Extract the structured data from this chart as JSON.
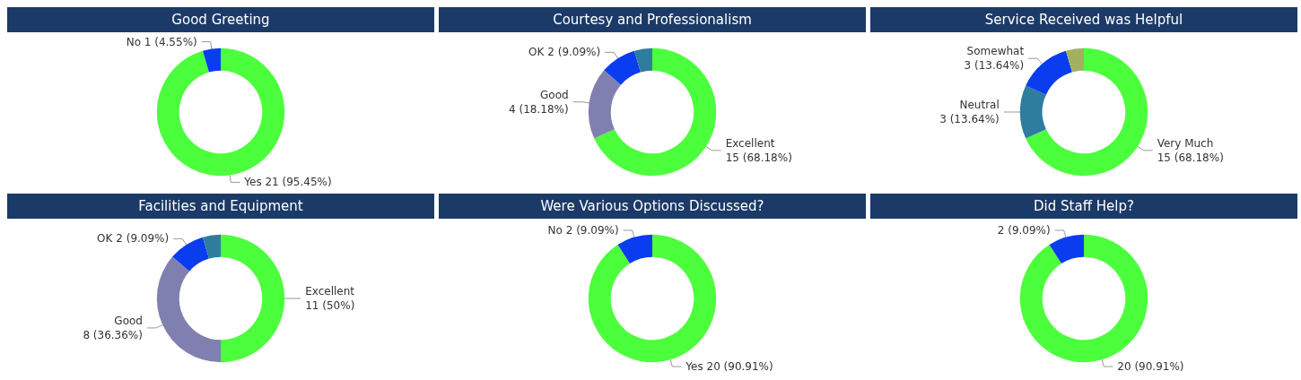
{
  "chart_data": [
    {
      "type": "donut",
      "title": "Good Greeting",
      "categories": [
        "Yes",
        "No"
      ],
      "values": [
        21,
        1
      ],
      "colors": [
        "#4cff3c",
        "#0a3cf0"
      ],
      "value_labels": [
        "21 (95.45%)",
        "1 (4.55%)"
      ]
    },
    {
      "type": "donut",
      "title": "Courtesy and Professionalism",
      "categories": [
        "Excellent",
        "Good",
        "OK",
        null
      ],
      "values": [
        15,
        4,
        2,
        1
      ],
      "colors": [
        "#4cff3c",
        "#8080b0",
        "#0a3cf0",
        "#2e7d9e"
      ],
      "value_labels": [
        "15 (68.18%)",
        "4 (18.18%)",
        "2 (9.09%)",
        null
      ]
    },
    {
      "type": "donut",
      "title": "Service Received was Helpful",
      "categories": [
        "Very Much",
        "Neutral",
        "Somewhat",
        null
      ],
      "values": [
        15,
        3,
        3,
        1
      ],
      "colors": [
        "#4cff3c",
        "#2e7d9e",
        "#0a3cf0",
        "#a3b060"
      ],
      "value_labels": [
        "15 (68.18%)",
        "3 (13.64%)",
        "3 (13.64%)",
        null
      ]
    },
    {
      "type": "donut",
      "title": "Facilities and Equipment",
      "categories": [
        "Excellent",
        "Good",
        "OK",
        null
      ],
      "values": [
        11,
        8,
        2,
        1
      ],
      "colors": [
        "#4cff3c",
        "#8080b0",
        "#0a3cf0",
        "#2e7d9e"
      ],
      "value_labels": [
        "11 (50%)",
        "8 (36.36%)",
        "2 (9.09%)",
        null
      ]
    },
    {
      "type": "donut",
      "title": "Were Various Options Discussed?",
      "categories": [
        "Yes",
        "No"
      ],
      "values": [
        20,
        2
      ],
      "colors": [
        "#4cff3c",
        "#0a3cf0"
      ],
      "value_labels": [
        "20 (90.91%)",
        "2 (9.09%)"
      ]
    },
    {
      "type": "donut",
      "title": "Did Staff Help?",
      "categories": [
        null,
        null
      ],
      "values": [
        20,
        2
      ],
      "colors": [
        "#4cff3c",
        "#0a3cf0"
      ],
      "value_labels": [
        "20 (90.91%)",
        "2 (9.09%)"
      ]
    }
  ]
}
